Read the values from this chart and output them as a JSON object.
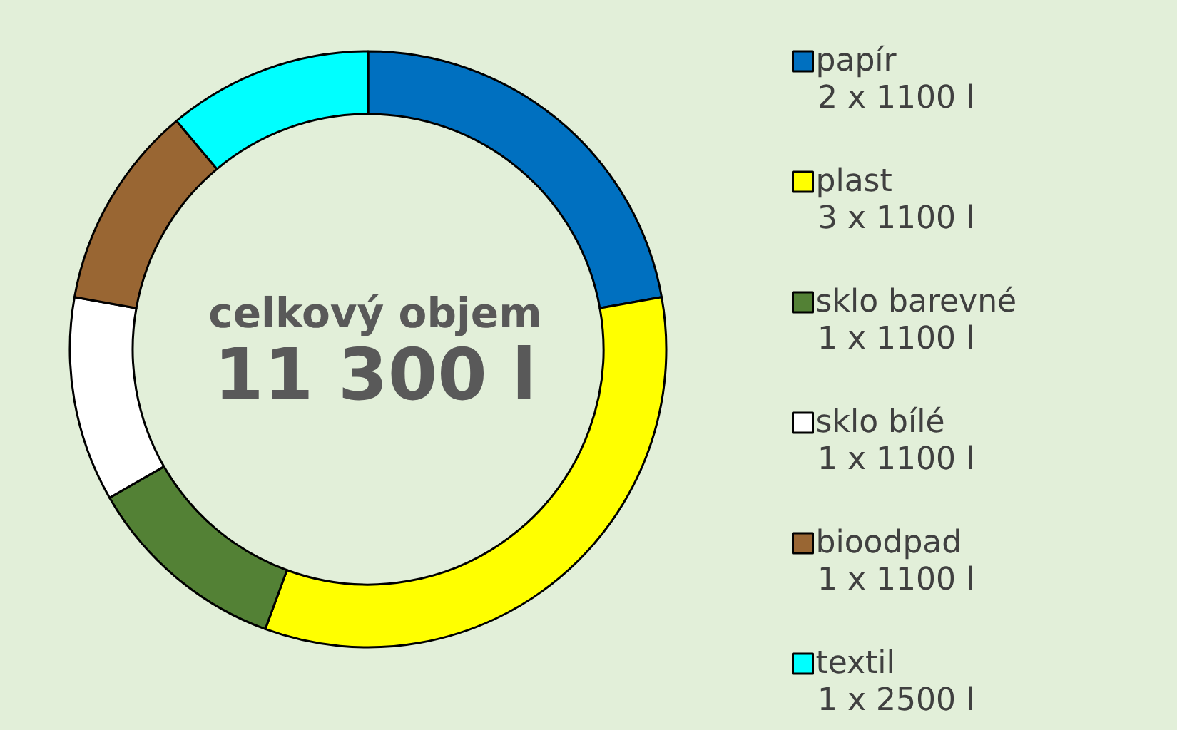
{
  "chart_data": {
    "type": "donut",
    "title": "celkový objem",
    "subtitle": "11 300 l",
    "categories": [
      "papír",
      "plast",
      "sklo barevné",
      "sklo bílé",
      "bioodpad",
      "textil"
    ],
    "values": [
      22.2,
      33.4,
      11.1,
      11.1,
      11.1,
      11.1
    ],
    "annotations": [
      "2 x 1100 l",
      "3 x 1100 l",
      "1 x 1100 l",
      "1 x 1100 l",
      "1 x 1100 l",
      "1 x 2500 l"
    ],
    "colors": [
      "#0070c0",
      "#ffff00",
      "#538135",
      "#ffffff",
      "#996633",
      "#00ffff"
    ],
    "legend": "right"
  }
}
